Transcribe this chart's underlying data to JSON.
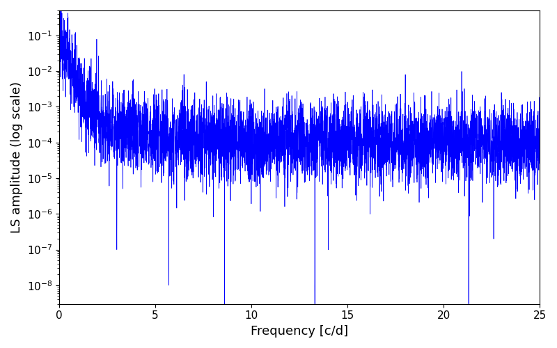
{
  "title": "",
  "xlabel": "Frequency [c/d]",
  "ylabel": "LS amplitude (log scale)",
  "xlim": [
    0,
    25
  ],
  "ylim": [
    3e-09,
    0.5
  ],
  "yscale": "log",
  "line_color": "#0000ff",
  "line_width": 0.5,
  "figsize": [
    8.0,
    5.0
  ],
  "dpi": 100,
  "seed": 12345,
  "n_points": 5000,
  "freq_max": 25.0,
  "background_color": "#ffffff",
  "tick_label_size": 11,
  "axis_label_size": 13
}
